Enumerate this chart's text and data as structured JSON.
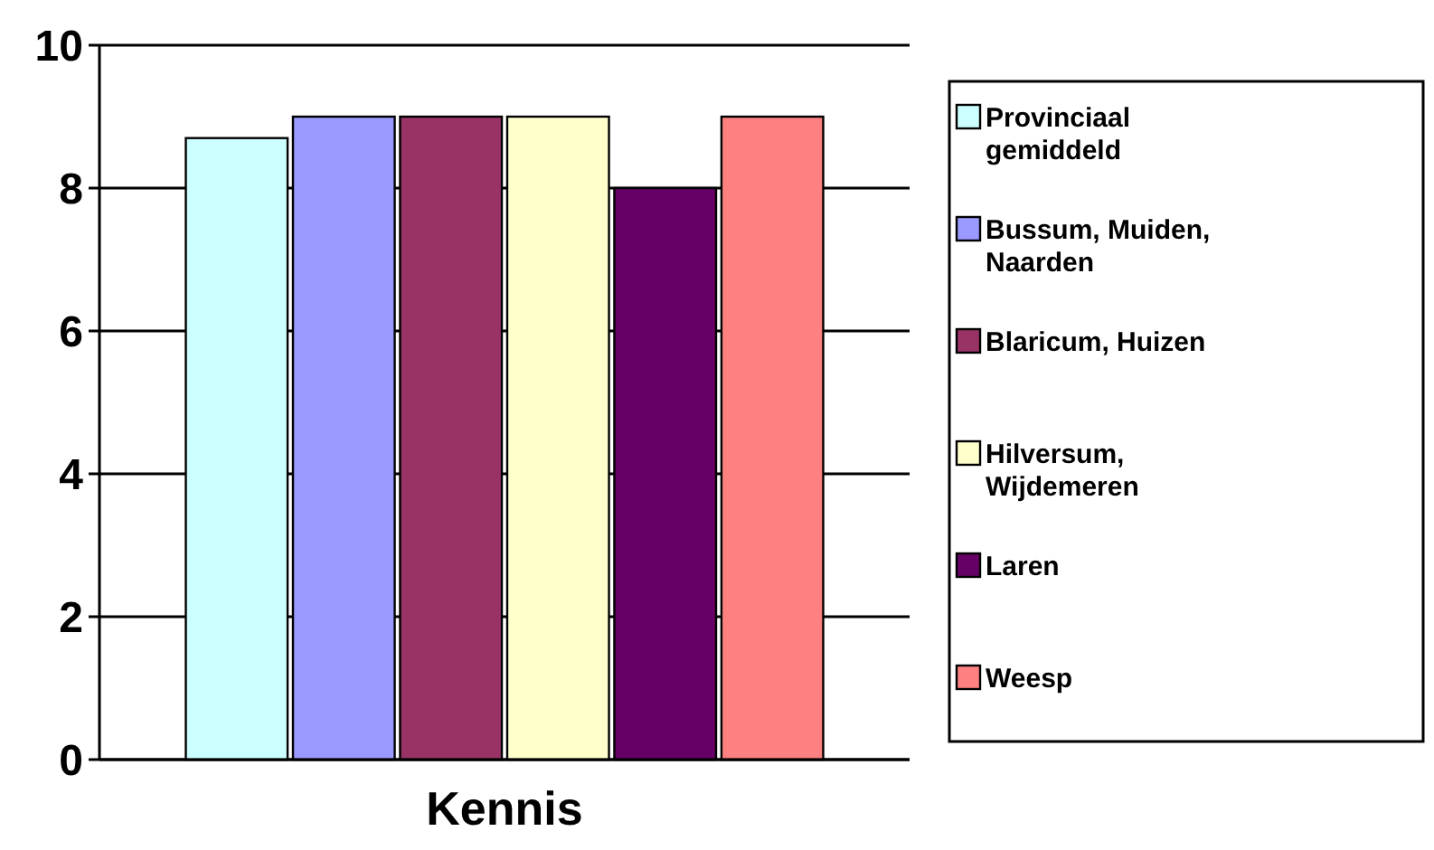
{
  "chart_data": {
    "type": "bar",
    "categories": [
      null
    ],
    "xlabel": "Kennis",
    "series": [
      {
        "name": "Provinciaal gemiddeld",
        "color": "#ccffff",
        "values": [
          8.7
        ]
      },
      {
        "name": "Bussum, Muiden, Naarden",
        "color": "#9999ff",
        "values": [
          9.0
        ]
      },
      {
        "name": "Blaricum, Huizen",
        "color": "#993366",
        "values": [
          9.0
        ]
      },
      {
        "name": "Hilversum, Wijdemeren",
        "color": "#ffffcc",
        "values": [
          9.0
        ]
      },
      {
        "name": "Laren",
        "color": "#660066",
        "values": [
          8.0
        ]
      },
      {
        "name": "Weesp",
        "color": "#ff8080",
        "values": [
          9.0
        ]
      }
    ],
    "ylim": [
      0,
      10
    ],
    "yticks": [
      0,
      2,
      4,
      6,
      8,
      10
    ],
    "grid": "y",
    "legend": "right"
  }
}
